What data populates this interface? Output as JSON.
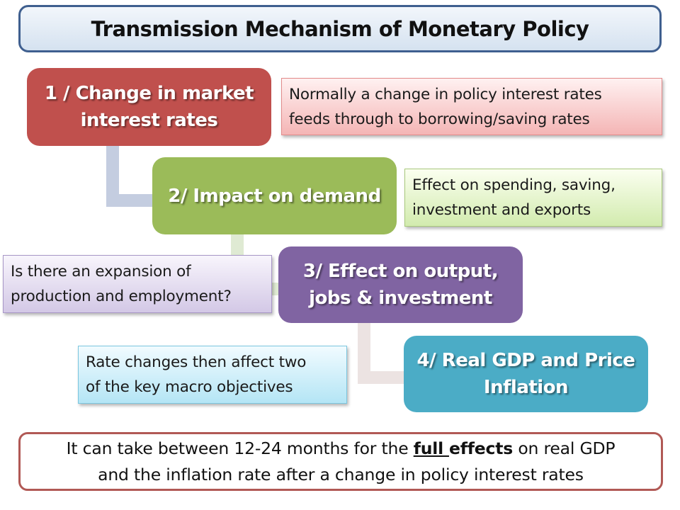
{
  "title": "Transmission Mechanism of Monetary Policy",
  "steps": [
    {
      "line1": "1 / Change in market",
      "line2": "interest rates",
      "color": "#c0504d"
    },
    {
      "line1": "2/ Impact on demand",
      "line2": "",
      "color": "#9bbb59"
    },
    {
      "line1": "3/ Effect on output,",
      "line2": "jobs & investment",
      "color": "#8064a2"
    },
    {
      "line1": "4/ Real GDP and Price",
      "line2": "Inflation",
      "color": "#4bacc6"
    }
  ],
  "notes": [
    {
      "line1": "Normally a change in policy interest rates",
      "line2": "feeds through to borrowing/saving rates"
    },
    {
      "line1": "Effect on spending, saving,",
      "line2": "investment and exports"
    },
    {
      "line1": "Is there an expansion of",
      "line2": "production and employment?"
    },
    {
      "line1": "Rate changes then affect two",
      "line2": "of the key macro objectives"
    }
  ],
  "bottom": {
    "part1": "It can take between 12-24 months for the ",
    "underlined": "full ",
    "bold": "effects",
    "part2": " on real GDP",
    "line2": "and the inflation rate after a change in policy interest rates"
  }
}
